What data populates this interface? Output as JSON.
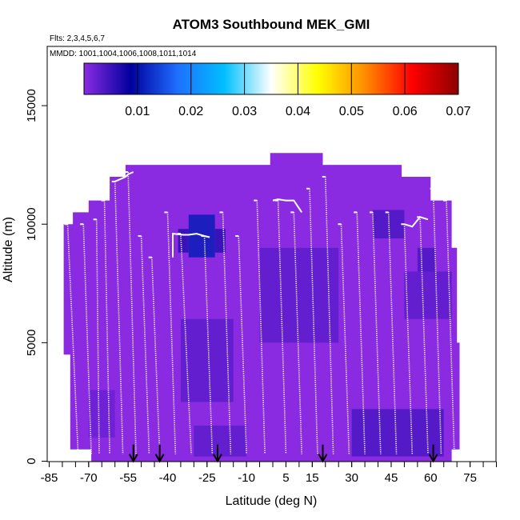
{
  "chart_data": {
    "type": "heatmap",
    "title": "ATOM3 Southbound MEK_GMI",
    "flights_label": "Flts: 2,3,4,5,6,7",
    "dates_label": "MMDD: 1001,1004,1006,1008,1011,1014",
    "xlabel": "Latitude (deg N)",
    "ylabel": "Altitude (m)",
    "xlim": [
      -85,
      85
    ],
    "ylim": [
      0,
      17500
    ],
    "x_ticks": [
      -85,
      -70,
      -55,
      -40,
      -25,
      -10,
      5,
      15,
      30,
      45,
      60,
      75
    ],
    "x_minor_step": 5,
    "y_ticks": [
      0,
      5000,
      10000,
      15000
    ],
    "grid": false,
    "colorbar": {
      "position": "top",
      "min": 0,
      "max": 0.07,
      "ticks": [
        "0.01",
        "0.02",
        "0.03",
        "0.04",
        "0.05",
        "0.06",
        "0.07"
      ],
      "tick_values": [
        0.01,
        0.02,
        0.03,
        0.04,
        0.05,
        0.06,
        0.07
      ],
      "colors": [
        "#8a2be2",
        "#00009e",
        "#1e6fff",
        "#00bfff",
        "#ffffff",
        "#ffff00",
        "#ff8c00",
        "#ff0000",
        "#8b0000"
      ]
    },
    "field_color": "#8a2be2",
    "field_outline": [
      [
        -79.5,
        4500
      ],
      [
        -79.5,
        10000
      ],
      [
        -76,
        10000
      ],
      [
        -76,
        10500
      ],
      [
        -70,
        10500
      ],
      [
        -70,
        11000
      ],
      [
        -62,
        11000
      ],
      [
        -62,
        12000
      ],
      [
        -56,
        12000
      ],
      [
        -56,
        12500
      ],
      [
        -1,
        12500
      ],
      [
        -1,
        13000
      ],
      [
        19,
        13000
      ],
      [
        19,
        12500
      ],
      [
        49,
        12500
      ],
      [
        49,
        12000
      ],
      [
        60,
        12000
      ],
      [
        60,
        11000
      ],
      [
        68,
        11000
      ],
      [
        68,
        9000
      ],
      [
        70,
        9000
      ],
      [
        70,
        5000
      ],
      [
        71,
        5000
      ],
      [
        71,
        500
      ],
      [
        68,
        500
      ],
      [
        68,
        0
      ],
      [
        -69,
        0
      ],
      [
        -69,
        500
      ],
      [
        -77,
        500
      ],
      [
        -77,
        4500
      ]
    ],
    "high_concentration_patches": [
      {
        "lat": [
          -32,
          -22
        ],
        "alt": [
          8600,
          10400
        ],
        "value": 0.011
      },
      {
        "lat": [
          -36,
          -32
        ],
        "alt": [
          8800,
          9800
        ],
        "value": 0.006
      },
      {
        "lat": [
          -22,
          -18
        ],
        "alt": [
          8800,
          9800
        ],
        "value": 0.006
      },
      {
        "lat": [
          38,
          50
        ],
        "alt": [
          9400,
          10600
        ],
        "value": 0.004
      },
      {
        "lat": [
          55,
          62
        ],
        "alt": [
          8000,
          9000
        ],
        "value": 0.004
      },
      {
        "lat": [
          -5,
          25
        ],
        "alt": [
          5000,
          9000
        ],
        "value": 0.003
      },
      {
        "lat": [
          50,
          68
        ],
        "alt": [
          6000,
          8000
        ],
        "value": 0.003
      },
      {
        "lat": [
          -35,
          -15
        ],
        "alt": [
          2500,
          6000
        ],
        "value": 0.003
      },
      {
        "lat": [
          30,
          65
        ],
        "alt": [
          200,
          2200
        ],
        "value": 0.004
      },
      {
        "lat": [
          -30,
          -10
        ],
        "alt": [
          200,
          1500
        ],
        "value": 0.003
      },
      {
        "lat": [
          -70,
          -60
        ],
        "alt": [
          1000,
          3000
        ],
        "value": 0.002
      }
    ],
    "profiles": [
      {
        "lat_top": -78,
        "lat_bottom": -74,
        "alt_top": 10000
      },
      {
        "lat_top": -72,
        "lat_bottom": -69,
        "alt_top": 10000
      },
      {
        "lat_top": -67,
        "lat_bottom": -66,
        "alt_top": 10200
      },
      {
        "lat_top": -64,
        "lat_bottom": -62,
        "alt_top": 11000
      },
      {
        "lat_top": -60,
        "lat_bottom": -57,
        "alt_top": 11800
      },
      {
        "lat_top": -55,
        "lat_bottom": -52,
        "alt_top": 12200
      },
      {
        "lat_top": -50,
        "lat_bottom": -47,
        "alt_top": 9500
      },
      {
        "lat_top": -46,
        "lat_bottom": -43,
        "alt_top": 8600
      },
      {
        "lat_top": -40,
        "lat_bottom": -37,
        "alt_top": 10500
      },
      {
        "lat_top": -35,
        "lat_bottom": -31,
        "alt_top": 9600
      },
      {
        "lat_top": -26,
        "lat_bottom": -23,
        "alt_top": 9500
      },
      {
        "lat_top": -19,
        "lat_bottom": -16,
        "alt_top": 10500
      },
      {
        "lat_top": -13,
        "lat_bottom": -10,
        "alt_top": 9500
      },
      {
        "lat_top": -6,
        "lat_bottom": -3,
        "alt_top": 11000
      },
      {
        "lat_top": 2,
        "lat_bottom": 5,
        "alt_top": 11000
      },
      {
        "lat_top": 8,
        "lat_bottom": 11,
        "alt_top": 10500
      },
      {
        "lat_top": 14,
        "lat_bottom": 17,
        "alt_top": 11500
      },
      {
        "lat_top": 20,
        "lat_bottom": 23,
        "alt_top": 12000
      },
      {
        "lat_top": 26,
        "lat_bottom": 29,
        "alt_top": 10000
      },
      {
        "lat_top": 32,
        "lat_bottom": 35,
        "alt_top": 10500
      },
      {
        "lat_top": 38,
        "lat_bottom": 41,
        "alt_top": 10500
      },
      {
        "lat_top": 44,
        "lat_bottom": 47,
        "alt_top": 10500
      },
      {
        "lat_top": 50,
        "lat_bottom": 53,
        "alt_top": 10000
      },
      {
        "lat_top": 56,
        "lat_bottom": 59,
        "alt_top": 10300
      },
      {
        "lat_top": 61,
        "lat_bottom": 64,
        "alt_top": 11500
      },
      {
        "lat_top": 66,
        "lat_bottom": 69,
        "alt_top": 11000
      }
    ],
    "flight_tracks": [
      {
        "lat": [
          -38,
          -38,
          -34,
          -32,
          -29,
          -26,
          -24
        ],
        "alt": [
          8600,
          9600,
          9550,
          9550,
          9600,
          9500,
          9450
        ]
      },
      {
        "lat": [
          -60,
          -56,
          -55,
          -53
        ],
        "alt": [
          11800,
          12000,
          12100,
          12200
        ]
      },
      {
        "lat": [
          0,
          2,
          5,
          8,
          11
        ],
        "alt": [
          11000,
          11050,
          11000,
          11000,
          10500
        ]
      },
      {
        "lat": [
          50,
          53,
          56,
          59
        ],
        "alt": [
          10000,
          9900,
          10300,
          10200
        ]
      }
    ],
    "arrows_lat": [
      -53,
      -43,
      -21,
      19,
      61
    ]
  }
}
